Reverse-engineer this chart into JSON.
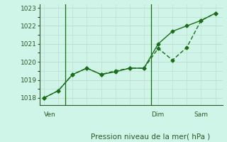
{
  "title": "",
  "xlabel": "Pression niveau de la mer( hPa )",
  "bg_color": "#cff5e8",
  "grid_color": "#c0ddd4",
  "line_color": "#1a6e1a",
  "line1_x": [
    0,
    1,
    2,
    3,
    4,
    5,
    6,
    7,
    8,
    9,
    10,
    11,
    12
  ],
  "line1_y": [
    1018.0,
    1018.4,
    1019.3,
    1019.65,
    1019.3,
    1019.45,
    1019.65,
    1019.65,
    1021.0,
    1021.7,
    1022.0,
    1022.3,
    1022.7
  ],
  "line2_x": [
    0,
    1,
    2,
    3,
    4,
    5,
    6,
    7,
    8,
    9,
    10,
    11,
    12
  ],
  "line2_y": [
    1018.0,
    1018.4,
    1019.3,
    1019.65,
    1019.3,
    1019.5,
    1019.65,
    1019.65,
    1020.75,
    1020.1,
    1020.8,
    1022.3,
    1022.7
  ],
  "vlines_x": [
    1.5,
    7.5
  ],
  "tick_labels": [
    {
      "x": 0.0,
      "label": "Ven"
    },
    {
      "x": 7.5,
      "label": "Dim"
    },
    {
      "x": 10.5,
      "label": "Sam"
    }
  ],
  "ylim": [
    1017.6,
    1023.2
  ],
  "xlim": [
    -0.3,
    12.5
  ],
  "yticks": [
    1018,
    1019,
    1020,
    1021,
    1022,
    1023
  ],
  "xticks_minor": [
    0,
    1,
    2,
    3,
    4,
    5,
    6,
    7,
    8,
    9,
    10,
    11,
    12
  ],
  "figsize": [
    3.2,
    2.0
  ],
  "dpi": 100
}
